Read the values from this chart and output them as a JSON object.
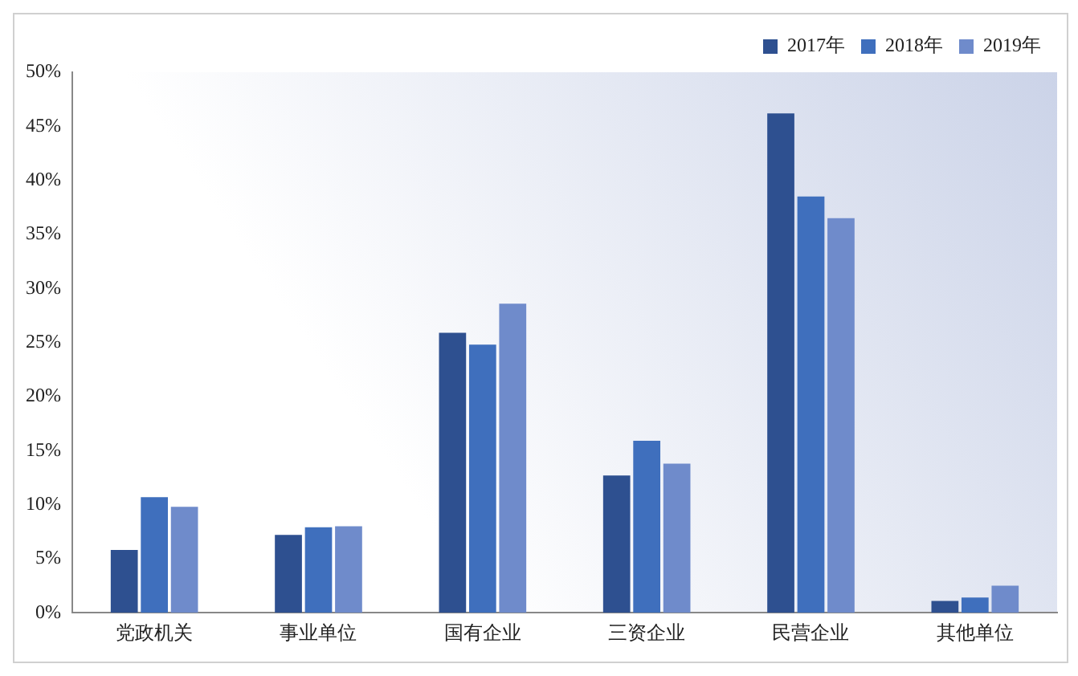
{
  "chart_data": {
    "type": "bar",
    "categories": [
      "党政机关",
      "事业单位",
      "国有企业",
      "三资企业",
      "民营企业",
      "其他单位"
    ],
    "series": [
      {
        "name": "2017年",
        "color": "#2e5090",
        "values": [
          5.8,
          7.2,
          25.9,
          12.7,
          46.2,
          1.1
        ]
      },
      {
        "name": "2018年",
        "color": "#3f6fbd",
        "values": [
          10.7,
          7.9,
          24.8,
          15.9,
          38.5,
          1.4
        ]
      },
      {
        "name": "2019年",
        "color": "#6f8bcb",
        "values": [
          9.8,
          8.0,
          28.6,
          13.8,
          36.5,
          2.5
        ]
      }
    ],
    "ylim": [
      0,
      50
    ],
    "yticks": [
      {
        "value": 0,
        "label": "0%"
      },
      {
        "value": 5,
        "label": "5%"
      },
      {
        "value": 10,
        "label": "10%"
      },
      {
        "value": 15,
        "label": "15%"
      },
      {
        "value": 20,
        "label": "20%"
      },
      {
        "value": 25,
        "label": "25%"
      },
      {
        "value": 30,
        "label": "30%"
      },
      {
        "value": 35,
        "label": "35%"
      },
      {
        "value": 40,
        "label": "40%"
      },
      {
        "value": 45,
        "label": "45%"
      },
      {
        "value": 50,
        "label": "50%"
      }
    ],
    "grid": false,
    "legend": "top right"
  }
}
